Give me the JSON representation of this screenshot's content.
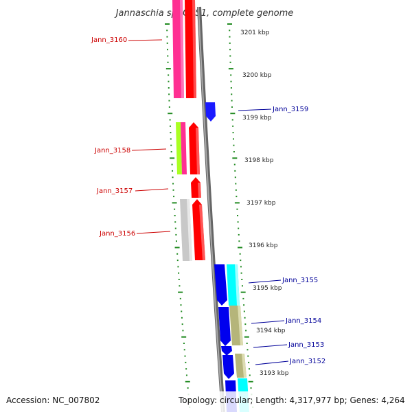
{
  "title": "Jannaschia sp. CCS1, complete genome",
  "footer": {
    "accession": "Accession: NC_007802",
    "topology": "Topology: circular; Length: 4,317,977 bp; Genes: 4,264"
  },
  "colors": {
    "label_left": "#cc0000",
    "label_right": "#000099",
    "backbone": "#888888",
    "tick": "#228b22"
  },
  "kbp_labels": [
    "3201 kbp",
    "3200 kbp",
    "3199 kbp",
    "3198 kbp",
    "3197 kbp",
    "3196 kbp",
    "3195 kbp",
    "3194 kbp",
    "3193 kbp"
  ],
  "gene_labels_left": [
    "Jann_3160",
    "Jann_3158",
    "Jann_3157",
    "Jann_3156"
  ],
  "gene_labels_right": [
    "Jann_3159",
    "Jann_3155",
    "Jann_3154",
    "Jann_3153",
    "Jann_3152"
  ]
}
